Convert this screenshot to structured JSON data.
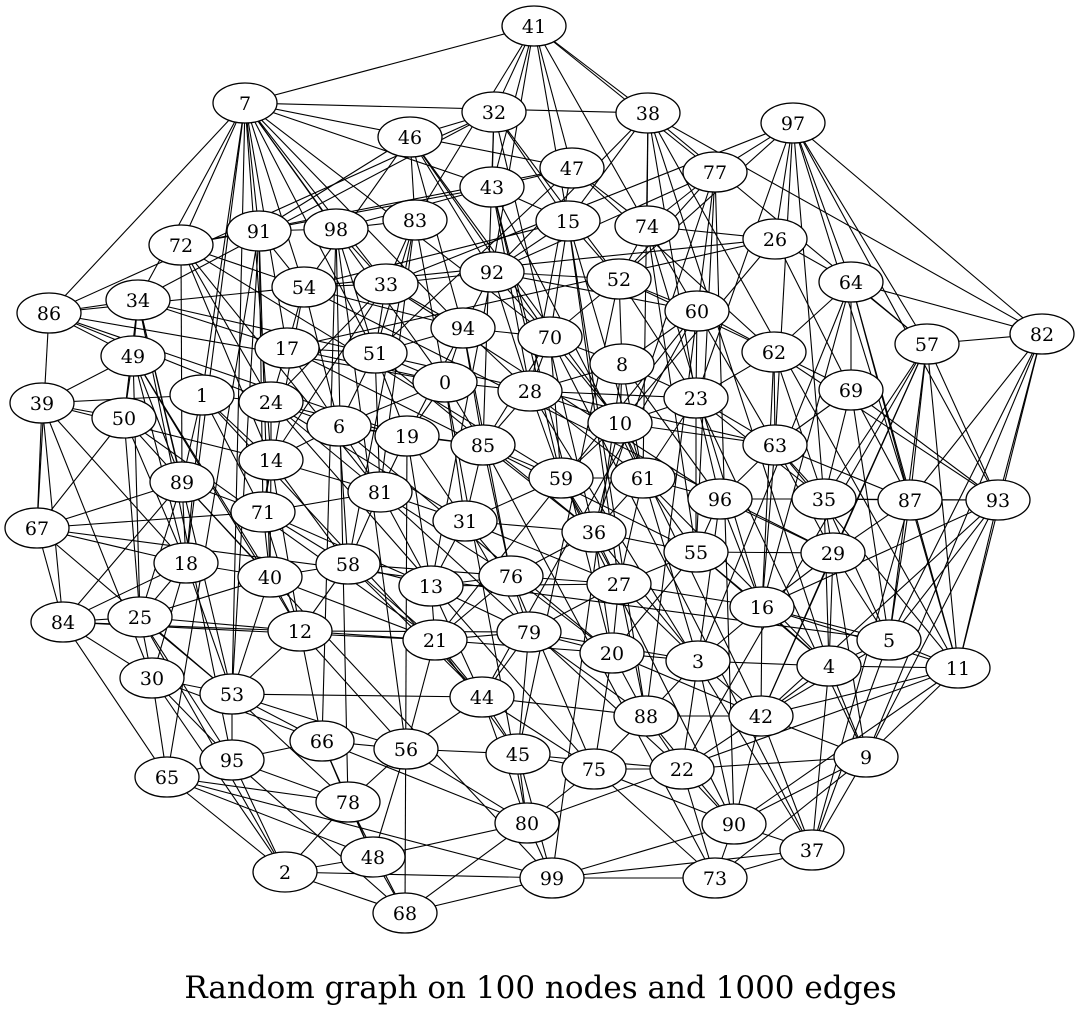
{
  "title": "Random graph on 100 nodes and 1000 edges",
  "graph": {
    "node_count": 100,
    "edge_count": 1000,
    "nodes": [
      "0",
      "1",
      "2",
      "3",
      "4",
      "5",
      "6",
      "7",
      "8",
      "9",
      "10",
      "11",
      "12",
      "13",
      "14",
      "15",
      "16",
      "17",
      "18",
      "19",
      "20",
      "21",
      "22",
      "23",
      "24",
      "25",
      "26",
      "27",
      "28",
      "29",
      "30",
      "31",
      "32",
      "33",
      "34",
      "35",
      "36",
      "37",
      "38",
      "39",
      "40",
      "41",
      "42",
      "43",
      "44",
      "45",
      "46",
      "47",
      "48",
      "49",
      "50",
      "51",
      "52",
      "53",
      "54",
      "55",
      "56",
      "57",
      "58",
      "59",
      "60",
      "61",
      "62",
      "63",
      "64",
      "65",
      "66",
      "67",
      "68",
      "69",
      "70",
      "71",
      "72",
      "73",
      "74",
      "75",
      "76",
      "77",
      "78",
      "79",
      "80",
      "81",
      "82",
      "83",
      "84",
      "85",
      "86",
      "87",
      "88",
      "89",
      "90",
      "91",
      "92",
      "93",
      "94",
      "95",
      "96",
      "97",
      "98",
      "99"
    ],
    "colors": {
      "node_fill": "#ffffff",
      "stroke": "#000000",
      "background": "#ffffff"
    }
  }
}
